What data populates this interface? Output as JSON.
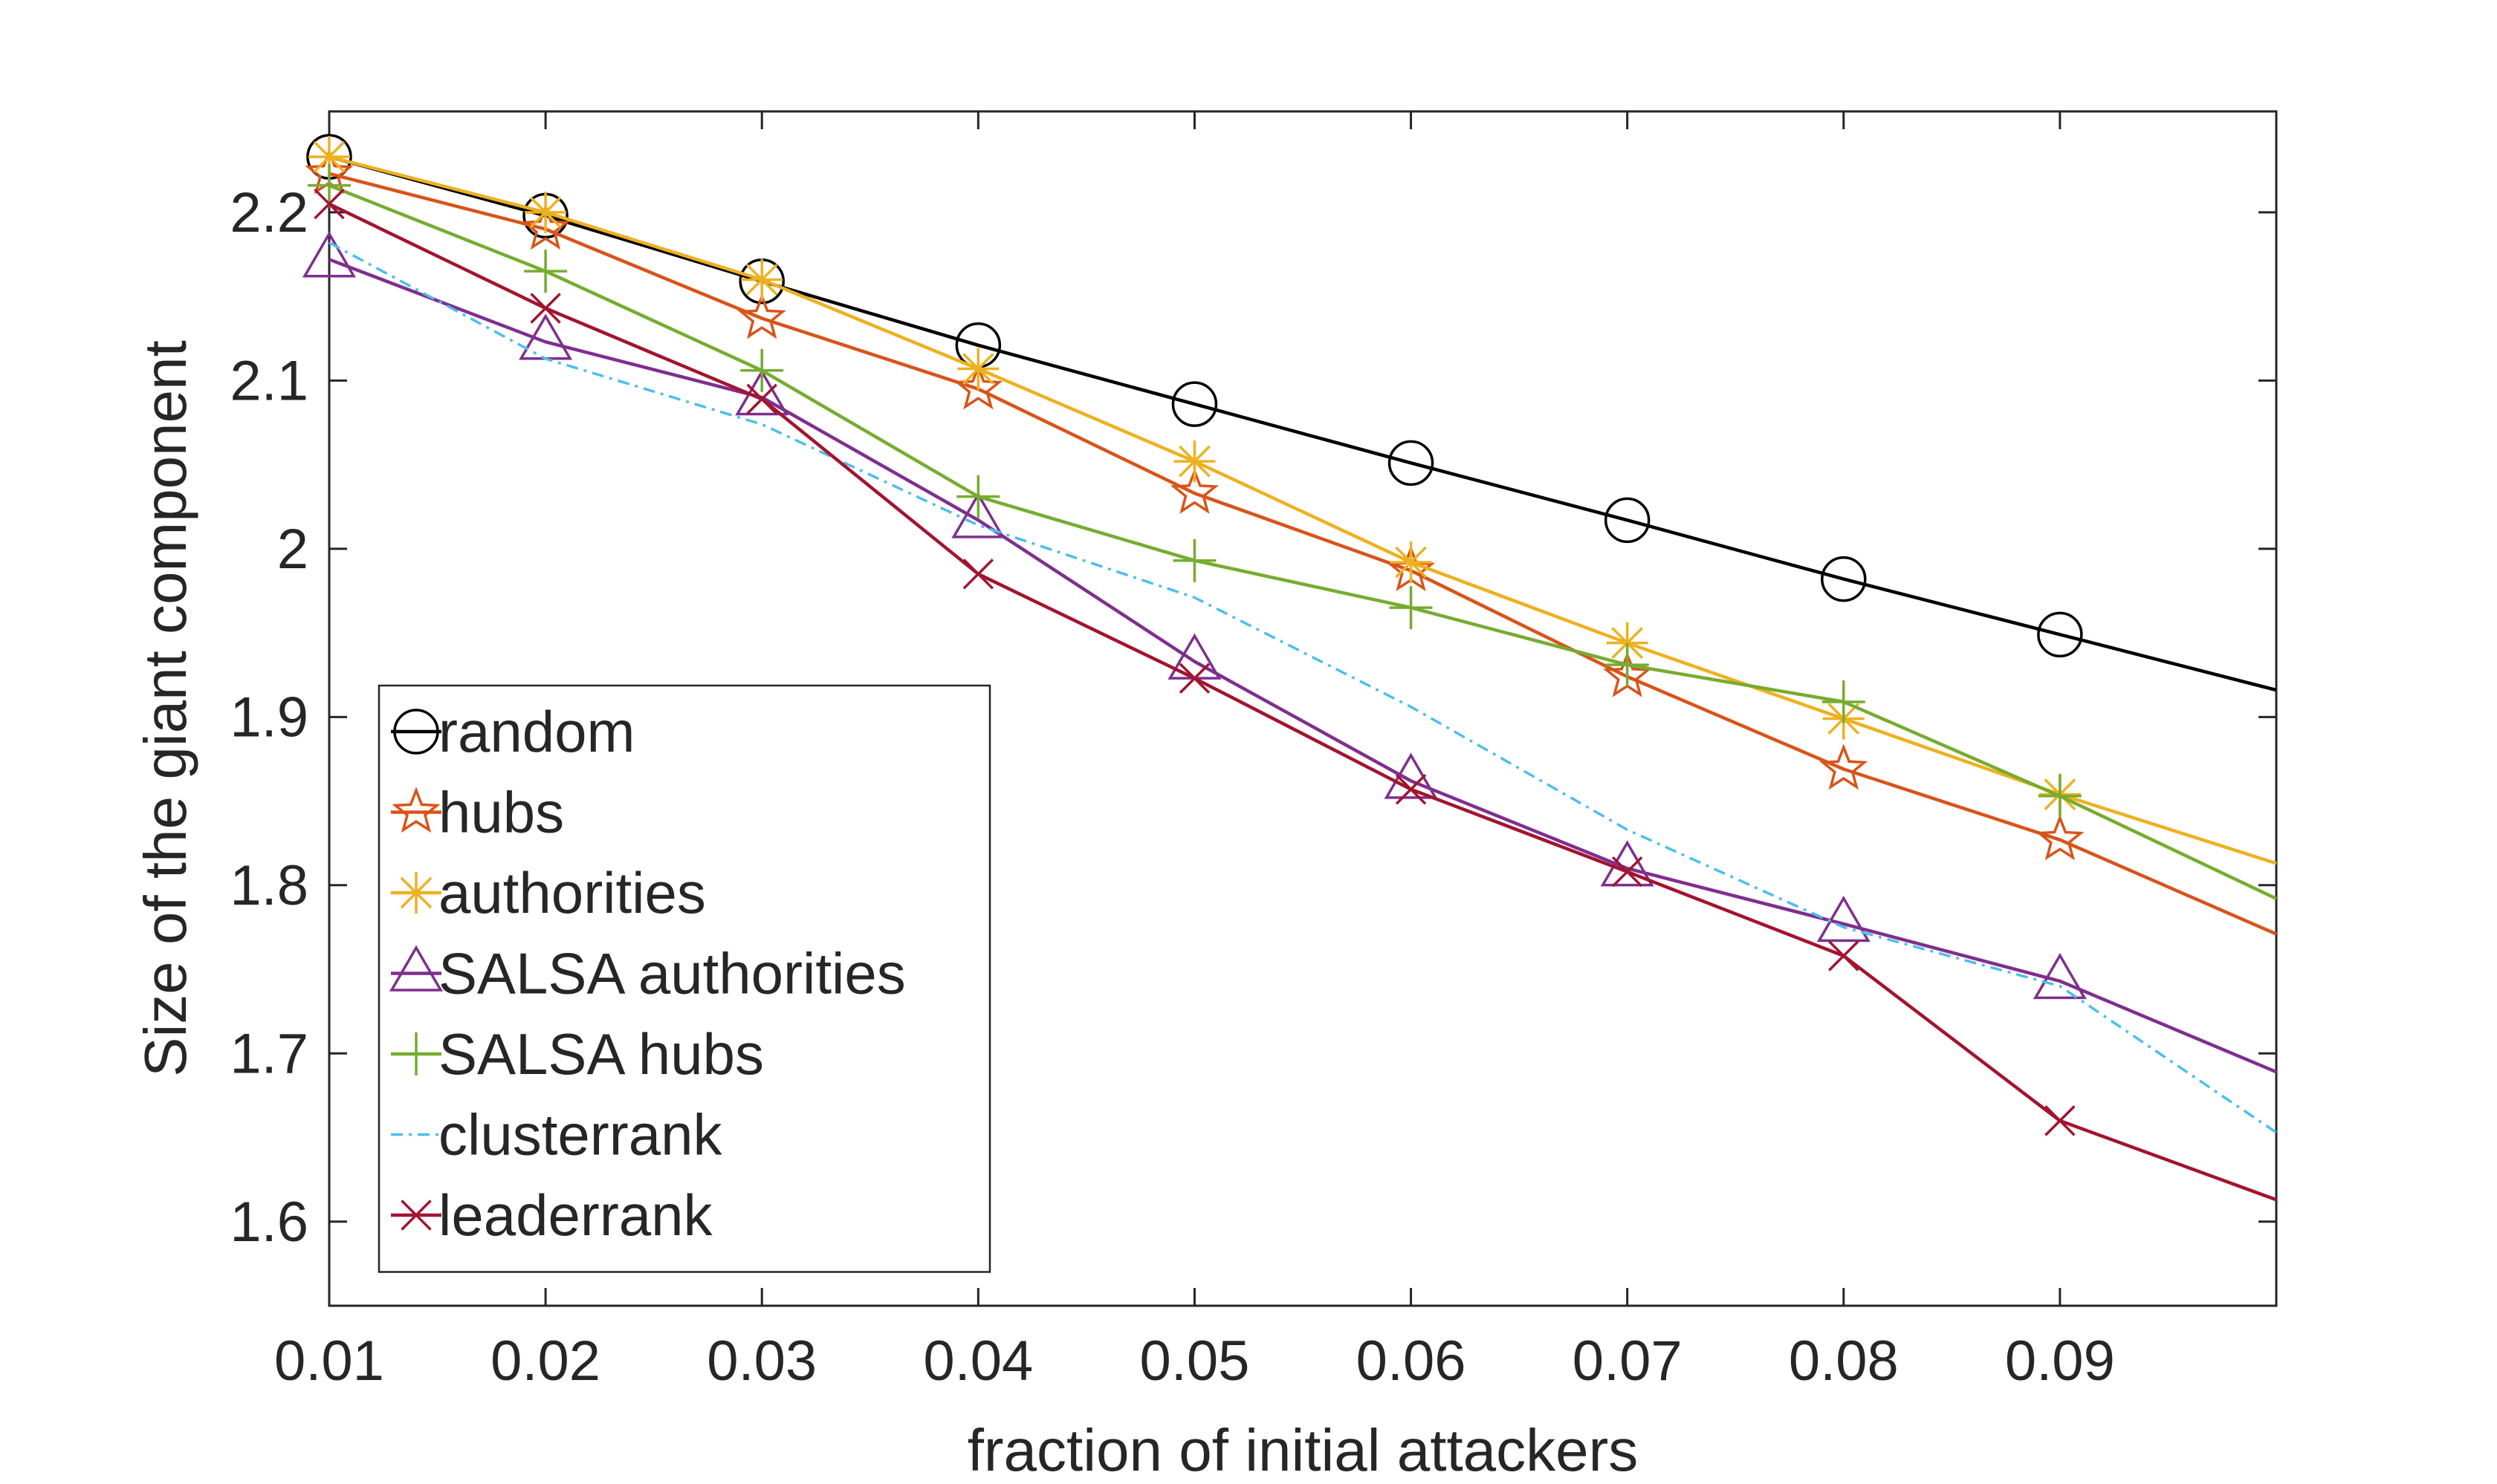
{
  "chart_data": {
    "type": "line",
    "xlabel": "fraction of initial attackers",
    "ylabel": "Size of the giant component",
    "xlim": [
      0.01,
      0.1
    ],
    "ylim": [
      1.55,
      2.26
    ],
    "xticks": [
      "0.01",
      "0.02",
      "0.03",
      "0.04",
      "0.05",
      "0.06",
      "0.07",
      "0.08",
      "0.09"
    ],
    "yticks": [
      "1.6",
      "1.7",
      "1.8",
      "1.9",
      "2",
      "2.1",
      "2.2"
    ],
    "legend_position": "bottom-left",
    "grid": false,
    "x": [
      0.01,
      0.02,
      0.03,
      0.04,
      0.05,
      0.06,
      0.07,
      0.08,
      0.09,
      0.1
    ],
    "series": [
      {
        "name": "random",
        "color": "#000000",
        "marker": "circle",
        "dashed": false,
        "values": [
          2.233,
          2.198,
          2.159,
          2.121,
          2.086,
          2.051,
          2.017,
          1.982,
          1.949,
          1.916
        ]
      },
      {
        "name": "hubs",
        "color": "#D95319",
        "marker": "star",
        "dashed": false,
        "values": [
          2.223,
          2.19,
          2.137,
          2.095,
          2.033,
          1.987,
          1.924,
          1.869,
          1.827,
          1.771
        ]
      },
      {
        "name": "authorities",
        "color": "#EDB120",
        "marker": "asterisk",
        "dashed": false,
        "values": [
          2.233,
          2.2,
          2.16,
          2.107,
          2.052,
          1.992,
          1.944,
          1.899,
          1.854,
          1.813
        ]
      },
      {
        "name": "SALSA authorities",
        "color": "#7E2F8E",
        "marker": "triangle",
        "dashed": false,
        "values": [
          2.172,
          2.123,
          2.09,
          2.017,
          1.933,
          1.862,
          1.81,
          1.777,
          1.743,
          1.689
        ]
      },
      {
        "name": "SALSA hubs",
        "color": "#77AC30",
        "marker": "plus",
        "dashed": false,
        "values": [
          2.216,
          2.165,
          2.106,
          2.031,
          1.993,
          1.965,
          1.931,
          1.909,
          1.853,
          1.792
        ]
      },
      {
        "name": "clusterrank",
        "color": "#4DBEEE",
        "marker": "none",
        "dashed": true,
        "values": [
          2.182,
          2.113,
          2.074,
          2.014,
          1.971,
          1.906,
          1.833,
          1.775,
          1.74,
          1.653
        ]
      },
      {
        "name": "leaderrank",
        "color": "#A2142F",
        "marker": "x",
        "dashed": false,
        "values": [
          2.205,
          2.143,
          2.089,
          1.985,
          1.923,
          1.857,
          1.808,
          1.758,
          1.66,
          1.613
        ]
      }
    ]
  }
}
